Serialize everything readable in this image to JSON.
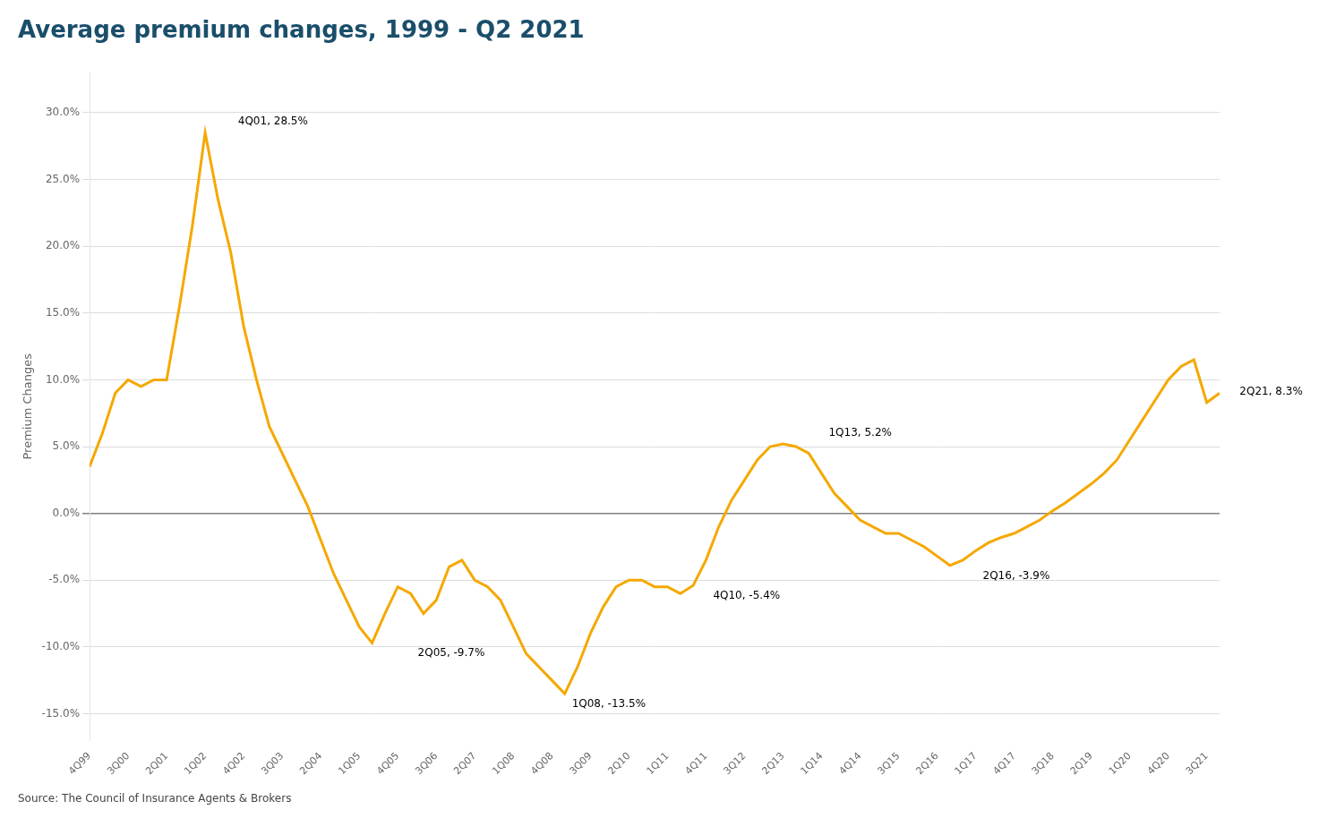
{
  "chart_data": {
    "type": "line",
    "title": "Average premium changes, 1999 - Q2 2021",
    "y_label": "Premium Changes",
    "source": "Source: The Council of Insurance Agents & Brokers",
    "categories": [
      "4Q99",
      null,
      null,
      "3Q00",
      null,
      null,
      "2Q01",
      null,
      null,
      "1Q02",
      null,
      null,
      "4Q02",
      null,
      null,
      "3Q03",
      null,
      null,
      "2Q04",
      null,
      null,
      "1Q05",
      null,
      null,
      "4Q05",
      null,
      null,
      "3Q06",
      null,
      null,
      "2Q07",
      null,
      null,
      "1Q08",
      null,
      null,
      "4Q08",
      null,
      null,
      "3Q09",
      null,
      null,
      "2Q10",
      null,
      null,
      "1Q11",
      null,
      null,
      "4Q11",
      null,
      null,
      "3Q12",
      null,
      null,
      "2Q13",
      null,
      null,
      "1Q14",
      null,
      null,
      "4Q14",
      null,
      null,
      "3Q15",
      null,
      null,
      "2Q16",
      null,
      null,
      "1Q17",
      null,
      null,
      "4Q17",
      null,
      null,
      "3Q18",
      null,
      null,
      "2Q19",
      null,
      null,
      "1Q20",
      null,
      null,
      "4Q20",
      null,
      null,
      "3Q21",
      null
    ],
    "values": [
      0.035,
      0.06,
      0.09,
      0.1,
      0.095,
      0.1,
      0.1,
      0.155,
      0.215,
      0.285,
      0.235,
      0.195,
      0.14,
      0.1,
      0.065,
      0.045,
      0.025,
      0.005,
      -0.02,
      -0.045,
      -0.065,
      -0.085,
      -0.097,
      -0.075,
      -0.055,
      -0.06,
      -0.075,
      -0.065,
      -0.04,
      -0.035,
      -0.05,
      -0.055,
      -0.065,
      -0.085,
      -0.105,
      -0.115,
      -0.125,
      -0.135,
      -0.115,
      -0.09,
      -0.07,
      -0.055,
      -0.05,
      -0.05,
      -0.055,
      -0.055,
      -0.06,
      -0.054,
      -0.035,
      -0.01,
      0.01,
      0.025,
      0.04,
      0.05,
      0.052,
      0.05,
      0.045,
      0.03,
      0.015,
      0.005,
      -0.005,
      -0.01,
      -0.015,
      -0.015,
      -0.02,
      -0.025,
      -0.032,
      -0.039,
      -0.035,
      -0.028,
      -0.022,
      -0.018,
      -0.015,
      -0.01,
      -0.005,
      0.002,
      0.008,
      0.015,
      0.022,
      0.03,
      0.04,
      0.055,
      0.07,
      0.085,
      0.1,
      0.11,
      0.115,
      0.083,
      0.09
    ],
    "color": "#F5A800",
    "ylim": [
      -0.17,
      0.33
    ],
    "yticks": [
      {
        "value": -0.15,
        "label": "-15.0%"
      },
      {
        "value": -0.1,
        "label": "-10.0%"
      },
      {
        "value": -0.05,
        "label": "-5.0%"
      },
      {
        "value": 0.0,
        "label": "0.0%"
      },
      {
        "value": 0.05,
        "label": "5.0%"
      },
      {
        "value": 0.1,
        "label": "10.0%"
      },
      {
        "value": 0.15,
        "label": "15.0%"
      },
      {
        "value": 0.2,
        "label": "20.0%"
      },
      {
        "value": 0.25,
        "label": "25.0%"
      },
      {
        "value": 0.3,
        "label": "30.0%"
      }
    ],
    "grid": true,
    "annotations": [
      {
        "label": "4Q01, 28.5%",
        "x": 11,
        "y": 0.285
      },
      {
        "label": "2Q05, -9.7%",
        "x": 25,
        "y": -0.097
      },
      {
        "label": "1Q08, -13.5%",
        "x": 37,
        "y": -0.135
      },
      {
        "label": "4Q10, -5.4%",
        "x": 48,
        "y": -0.054
      },
      {
        "label": "1Q13, 5.2%",
        "x": 57,
        "y": 0.052
      },
      {
        "label": "2Q16, -3.9%",
        "x": 69,
        "y": -0.039
      },
      {
        "label": "2Q21, 8.3%",
        "x": 89,
        "y": 0.083
      }
    ]
  }
}
